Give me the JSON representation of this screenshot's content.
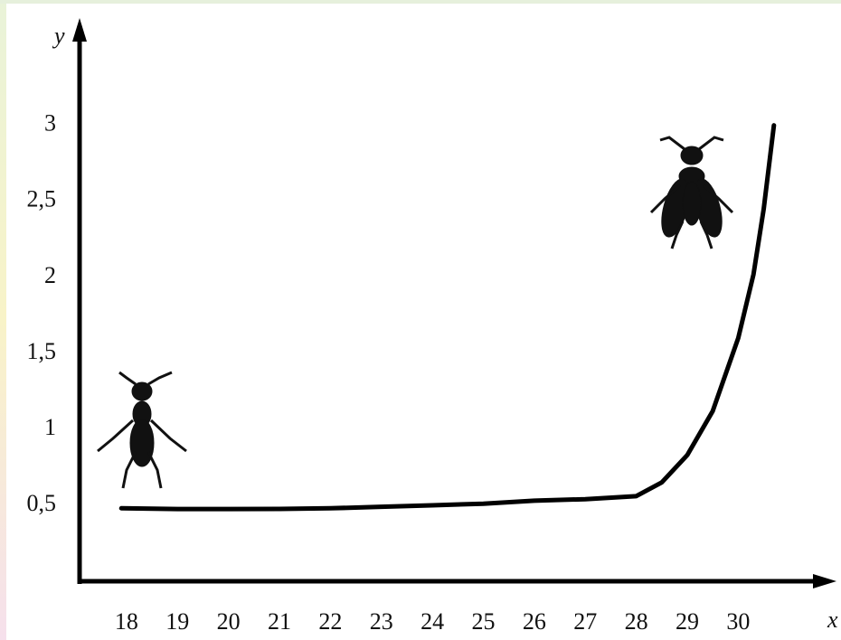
{
  "chart_data": {
    "type": "line",
    "x_label": "x",
    "y_label": "y",
    "x": [
      17.9,
      19,
      20,
      21,
      22,
      23,
      24,
      25,
      26,
      27,
      28,
      28.5,
      29,
      29.5,
      30,
      30.3,
      30.5,
      30.7
    ],
    "series": [
      {
        "color": "#000000",
        "values": [
          0.48,
          0.475,
          0.475,
          0.476,
          0.48,
          0.49,
          0.5,
          0.51,
          0.53,
          0.54,
          0.56,
          0.65,
          0.83,
          1.12,
          1.6,
          2.02,
          2.45,
          3.0
        ]
      }
    ],
    "xlim": [
      17.08,
      31.75
    ],
    "ylim": [
      0,
      3.7
    ],
    "xticks": [
      18,
      19,
      20,
      21,
      22,
      23,
      24,
      25,
      26,
      27,
      28,
      29,
      30
    ],
    "yticks": [
      {
        "value": 0.5,
        "label": "0,5"
      },
      1,
      {
        "value": 1.5,
        "label": "1,5"
      },
      2,
      {
        "value": 2.5,
        "label": "2,5"
      },
      3
    ],
    "grid": false
  }
}
